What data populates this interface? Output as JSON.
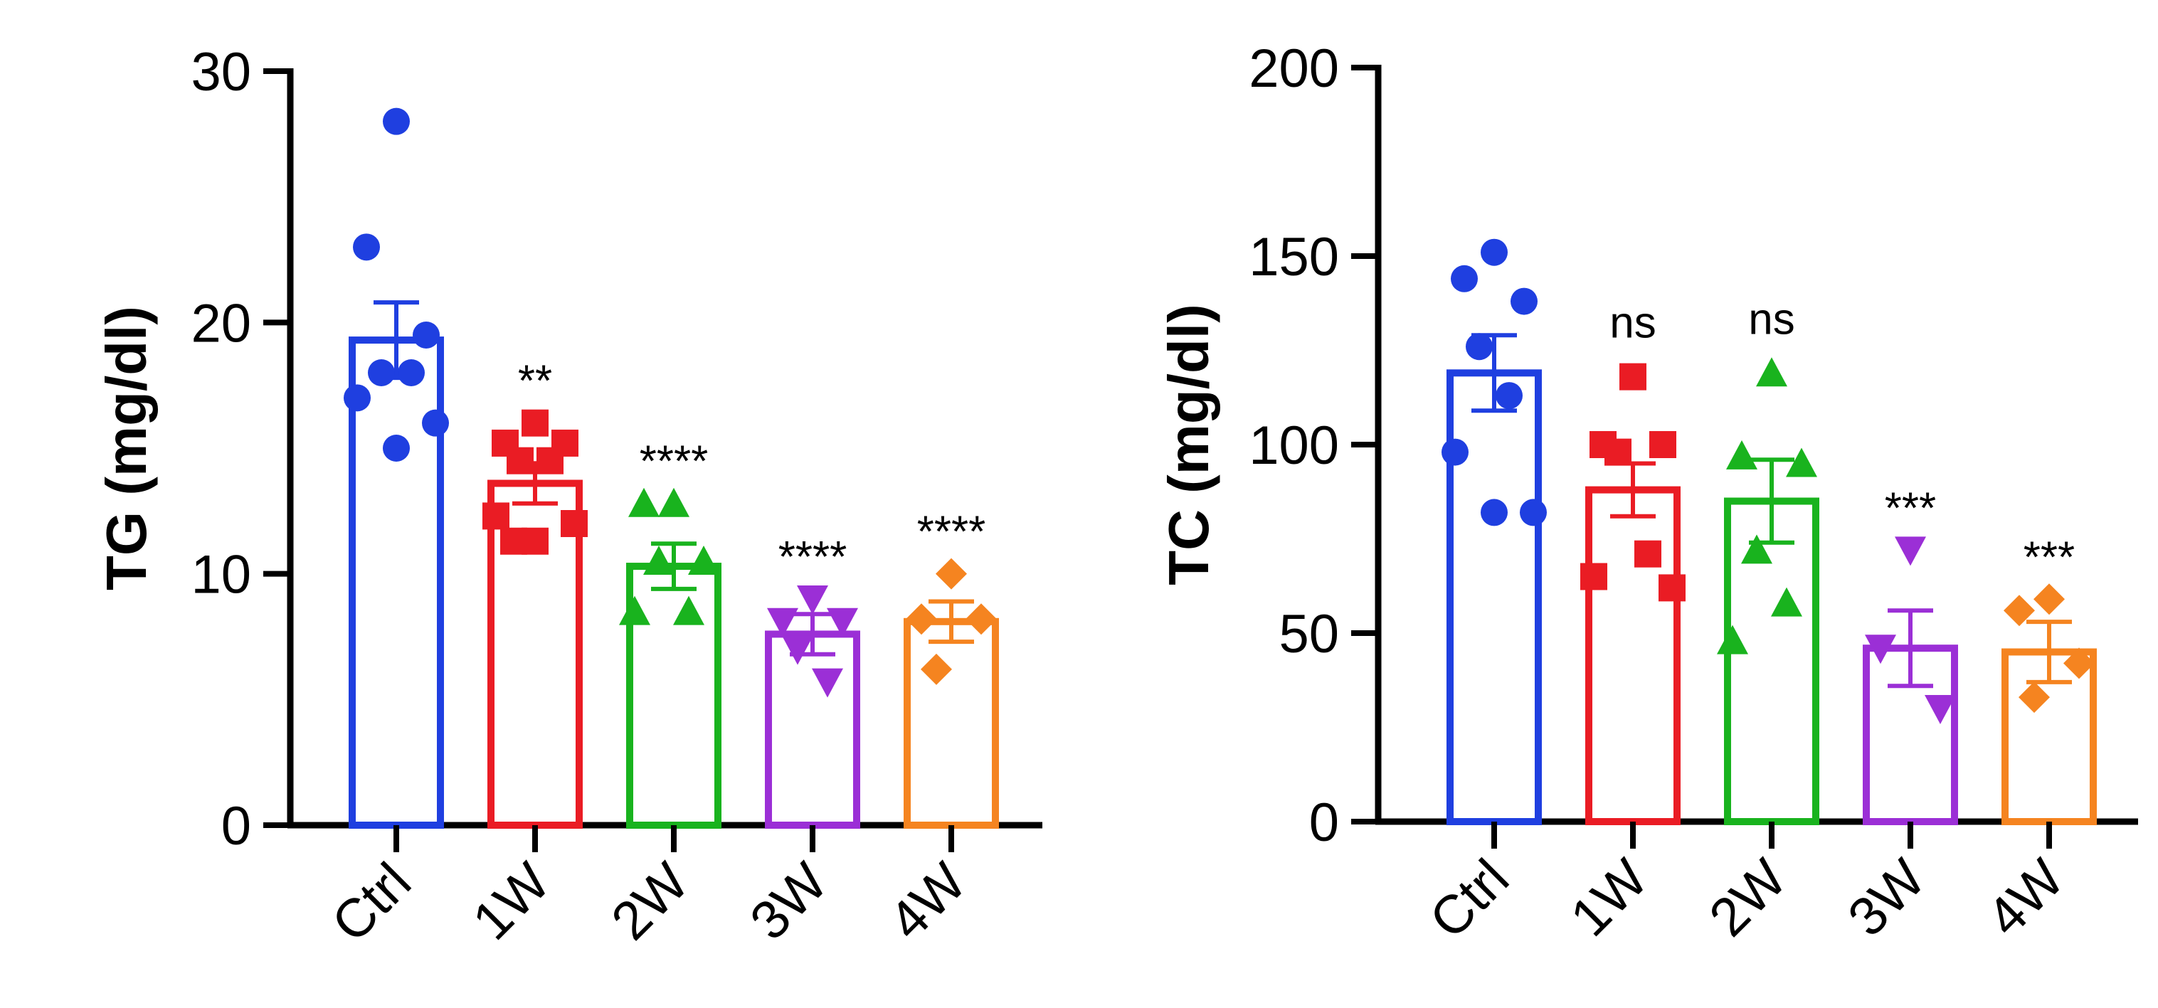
{
  "chart_data": [
    {
      "type": "bar",
      "ylabel": "TG (mg/dl)",
      "categories": [
        "Ctrl",
        "1W",
        "2W",
        "3W",
        "4W"
      ],
      "colors": [
        "#1f3fe0",
        "#ea1c24",
        "#19b31e",
        "#9b2fd6",
        "#f58420"
      ],
      "markers": [
        "circle",
        "square",
        "triangle-up",
        "triangle-down",
        "diamond"
      ],
      "ylim": [
        0,
        30
      ],
      "yticks": [
        0,
        10,
        20,
        30
      ],
      "values": [
        19.3,
        13.6,
        10.3,
        7.6,
        8.1
      ],
      "errors": [
        1.5,
        0.8,
        0.9,
        0.8,
        0.8
      ],
      "significance": [
        "",
        "**",
        "****",
        "****",
        "****"
      ],
      "points": [
        [
          28,
          23,
          19.5,
          18,
          18,
          17,
          16,
          15
        ],
        [
          16,
          15.2,
          15.2,
          14.5,
          14.5,
          12.3,
          12,
          11.3,
          11.3
        ],
        [
          12.8,
          12.8,
          10.5,
          10.5,
          8.5,
          8.5
        ],
        [
          9,
          8.1,
          8.1,
          7,
          5.7
        ],
        [
          10,
          8.2,
          8.2,
          6.2
        ]
      ]
    },
    {
      "type": "bar",
      "ylabel": "TC (mg/dl)",
      "categories": [
        "Ctrl",
        "1W",
        "2W",
        "3W",
        "4W"
      ],
      "colors": [
        "#1f3fe0",
        "#ea1c24",
        "#19b31e",
        "#9b2fd6",
        "#f58420"
      ],
      "markers": [
        "circle",
        "square",
        "triangle-up",
        "triangle-down",
        "diamond"
      ],
      "ylim": [
        0,
        200
      ],
      "yticks": [
        0,
        50,
        100,
        150,
        200
      ],
      "values": [
        119,
        88,
        85,
        46,
        45
      ],
      "errors": [
        10,
        7,
        11,
        10,
        8
      ],
      "significance": [
        "",
        "ns",
        "ns",
        "***",
        "***"
      ],
      "points": [
        [
          151,
          144,
          138,
          126,
          113,
          98,
          82,
          82
        ],
        [
          118,
          100,
          100,
          98,
          71,
          65,
          62
        ],
        [
          119,
          97,
          95,
          72,
          58,
          48
        ],
        [
          72,
          46,
          30
        ],
        [
          59,
          56,
          42,
          33
        ]
      ]
    }
  ]
}
